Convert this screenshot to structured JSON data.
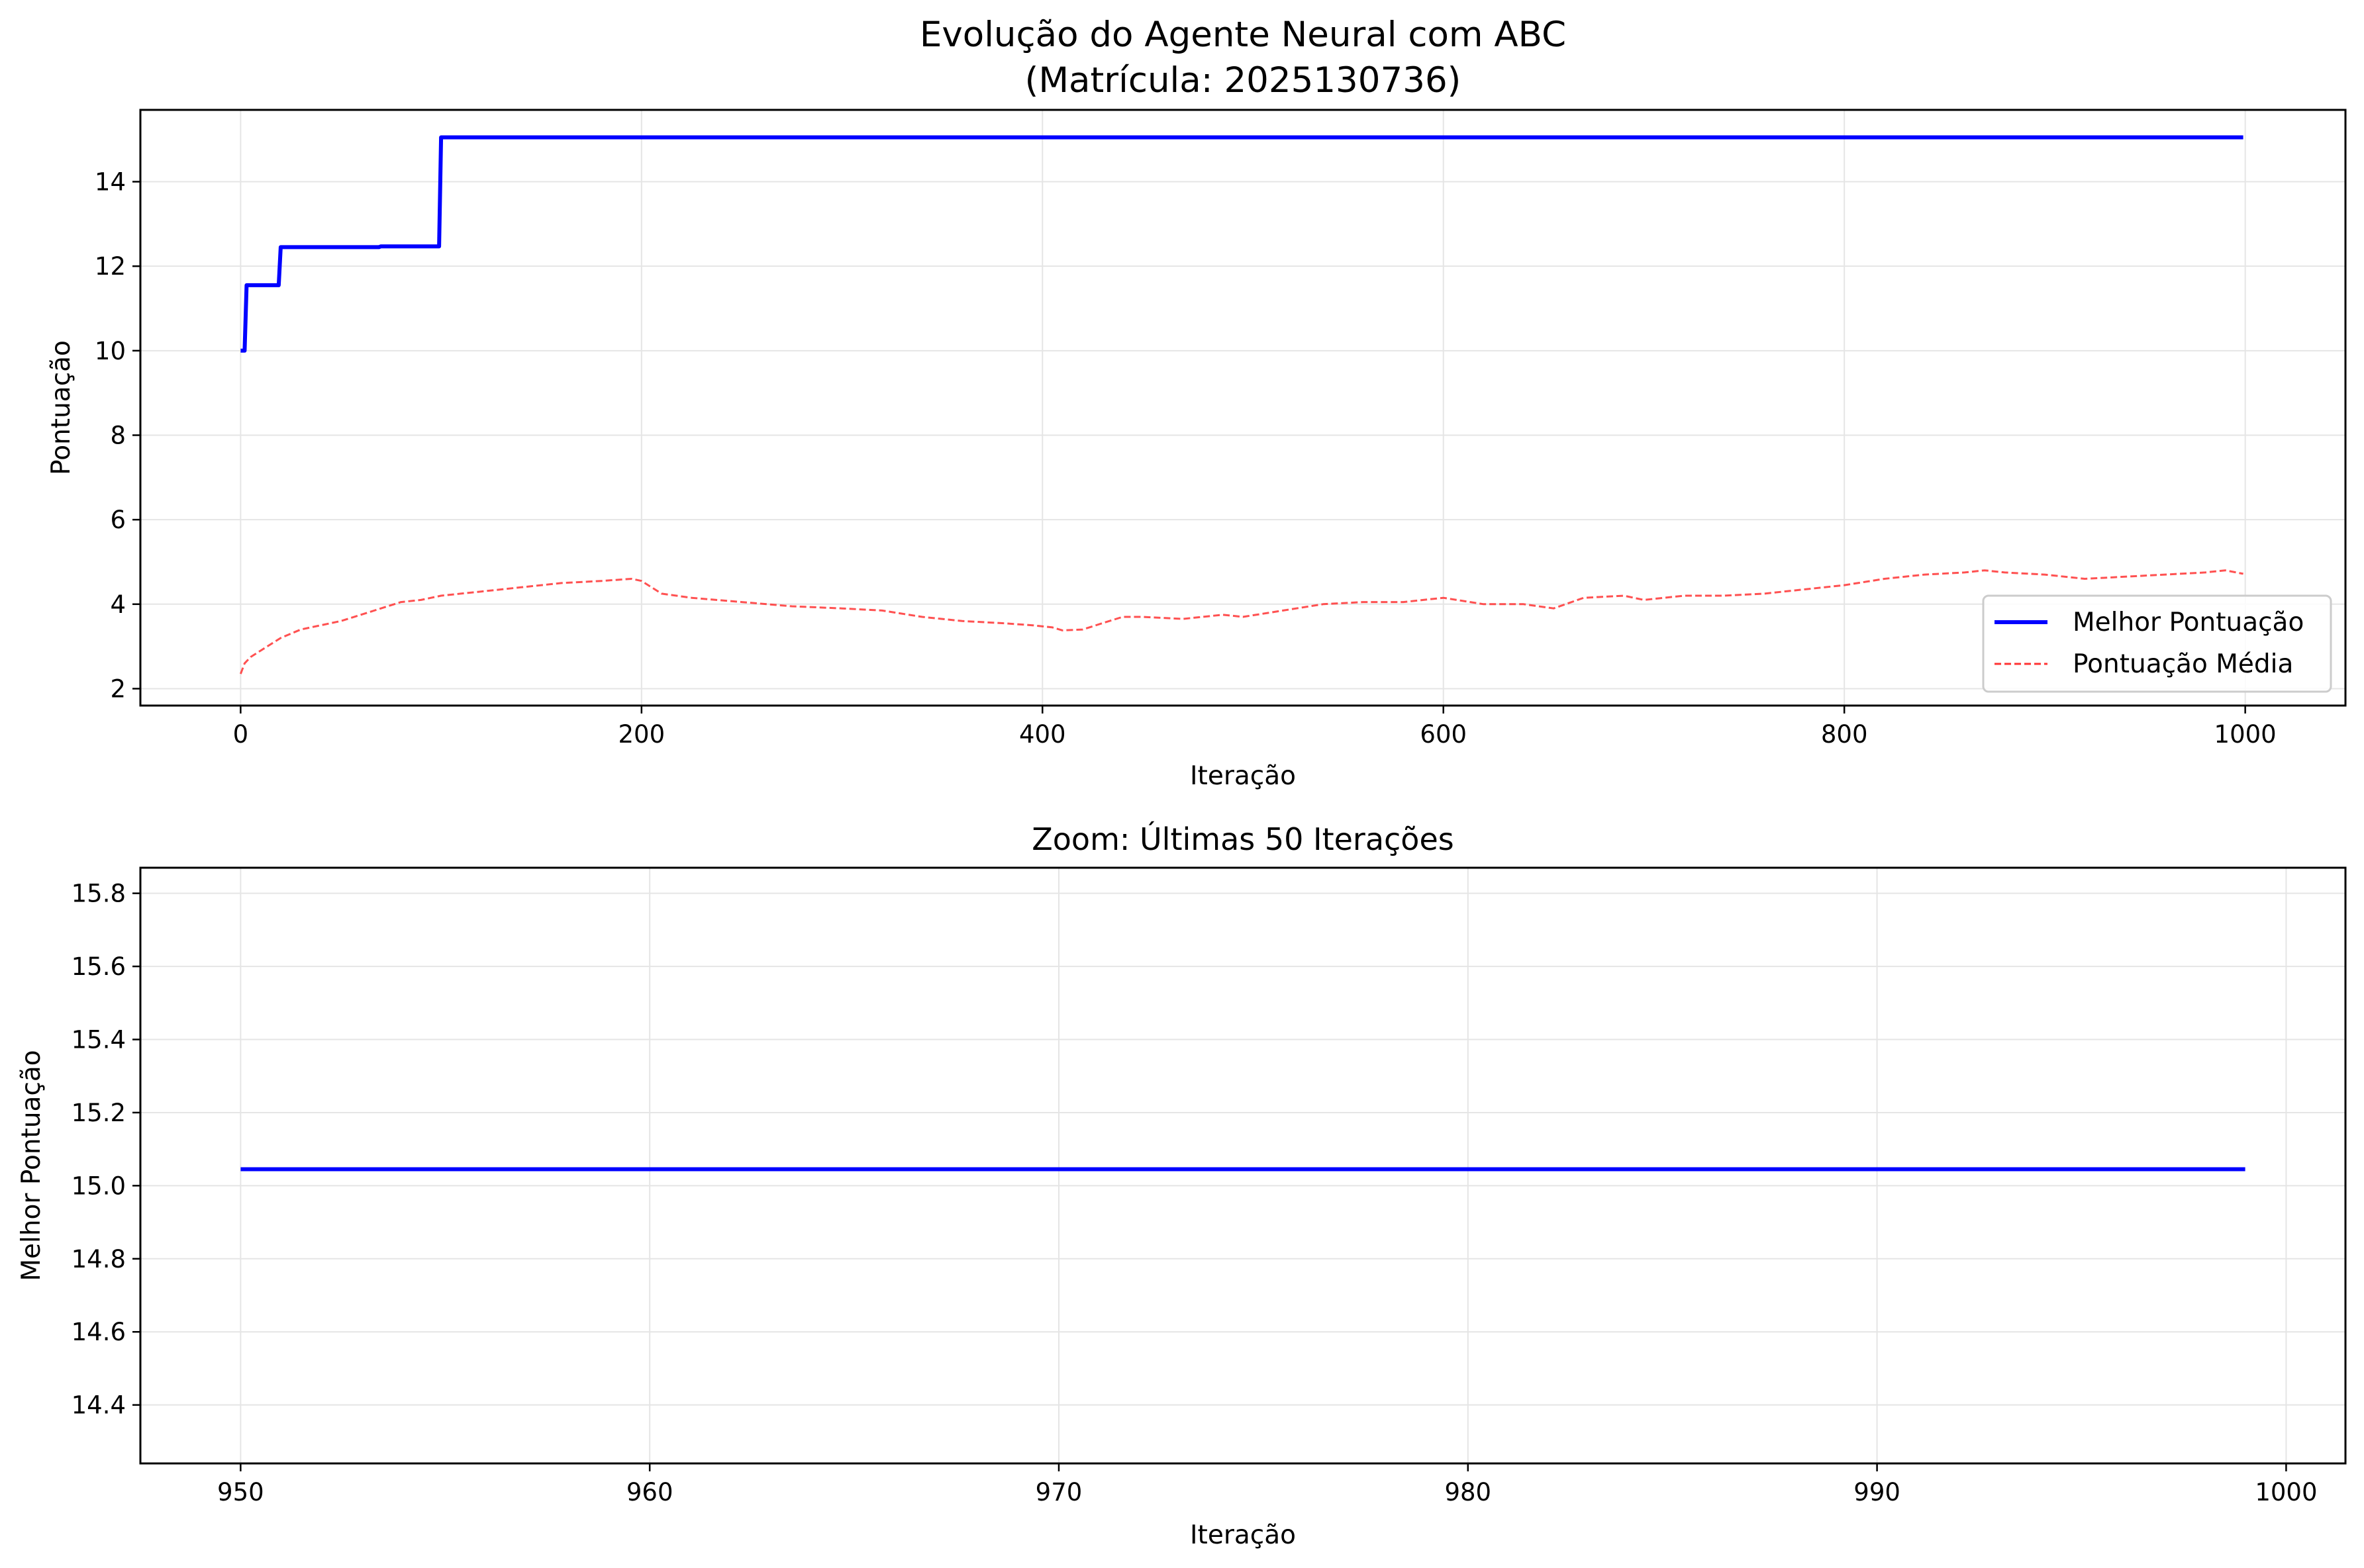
{
  "figure": {
    "title_line1": "Evolução do Agente Neural com ABC",
    "title_line2": "(Matrícula: 2025130736)"
  },
  "colors": {
    "best": "#0000ff",
    "mean": "#ff3333",
    "grid": "#e5e5e5",
    "axis": "#000000"
  },
  "chart_data": [
    {
      "type": "line",
      "title": "",
      "xlabel": "Iteração",
      "ylabel": "Pontuação",
      "xlim": [
        -50,
        1050
      ],
      "ylim": [
        1.6,
        15.7
      ],
      "xticks": [
        0,
        200,
        400,
        600,
        800,
        1000
      ],
      "yticks": [
        2,
        4,
        6,
        8,
        10,
        12,
        14
      ],
      "grid": true,
      "legend_position": "lower-right",
      "series": [
        {
          "name": "Melhor Pontuação",
          "style": "solid",
          "points": [
            [
              0,
              10.0
            ],
            [
              2,
              10.0
            ],
            [
              3,
              11.55
            ],
            [
              19,
              11.55
            ],
            [
              20,
              12.45
            ],
            [
              69,
              12.45
            ],
            [
              70,
              12.47
            ],
            [
              99,
              12.47
            ],
            [
              100,
              15.05
            ],
            [
              999,
              15.05
            ]
          ]
        },
        {
          "name": "Pontuação Média",
          "style": "dashed",
          "points": [
            [
              0,
              2.35
            ],
            [
              2,
              2.6
            ],
            [
              5,
              2.75
            ],
            [
              10,
              2.9
            ],
            [
              15,
              3.05
            ],
            [
              20,
              3.2
            ],
            [
              25,
              3.3
            ],
            [
              30,
              3.4
            ],
            [
              40,
              3.5
            ],
            [
              50,
              3.6
            ],
            [
              60,
              3.75
            ],
            [
              70,
              3.9
            ],
            [
              80,
              4.05
            ],
            [
              90,
              4.1
            ],
            [
              100,
              4.2
            ],
            [
              120,
              4.3
            ],
            [
              140,
              4.4
            ],
            [
              160,
              4.5
            ],
            [
              180,
              4.55
            ],
            [
              195,
              4.6
            ],
            [
              200,
              4.55
            ],
            [
              210,
              4.25
            ],
            [
              225,
              4.15
            ],
            [
              250,
              4.05
            ],
            [
              275,
              3.95
            ],
            [
              300,
              3.9
            ],
            [
              320,
              3.85
            ],
            [
              340,
              3.7
            ],
            [
              360,
              3.6
            ],
            [
              380,
              3.55
            ],
            [
              395,
              3.5
            ],
            [
              405,
              3.45
            ],
            [
              410,
              3.38
            ],
            [
              420,
              3.4
            ],
            [
              430,
              3.55
            ],
            [
              440,
              3.7
            ],
            [
              450,
              3.7
            ],
            [
              470,
              3.65
            ],
            [
              490,
              3.75
            ],
            [
              500,
              3.7
            ],
            [
              520,
              3.85
            ],
            [
              540,
              4.0
            ],
            [
              560,
              4.05
            ],
            [
              580,
              4.05
            ],
            [
              600,
              4.15
            ],
            [
              620,
              4.0
            ],
            [
              640,
              4.0
            ],
            [
              655,
              3.9
            ],
            [
              670,
              4.15
            ],
            [
              690,
              4.2
            ],
            [
              700,
              4.1
            ],
            [
              720,
              4.2
            ],
            [
              740,
              4.2
            ],
            [
              760,
              4.25
            ],
            [
              780,
              4.35
            ],
            [
              800,
              4.45
            ],
            [
              820,
              4.6
            ],
            [
              840,
              4.7
            ],
            [
              860,
              4.75
            ],
            [
              870,
              4.8
            ],
            [
              880,
              4.75
            ],
            [
              900,
              4.7
            ],
            [
              920,
              4.6
            ],
            [
              940,
              4.65
            ],
            [
              960,
              4.7
            ],
            [
              980,
              4.75
            ],
            [
              990,
              4.8
            ],
            [
              999,
              4.72
            ]
          ]
        }
      ]
    },
    {
      "type": "line",
      "title": "Zoom: Últimas 50 Iterações",
      "xlabel": "Iteração",
      "ylabel": "Melhor Pontuação",
      "xlim": [
        947.55,
        1001.45
      ],
      "ylim": [
        14.24,
        15.87
      ],
      "xticks": [
        950,
        960,
        970,
        980,
        990,
        1000
      ],
      "yticks": [
        14.4,
        14.6,
        14.8,
        15.0,
        15.2,
        15.4,
        15.6,
        15.8
      ],
      "ytick_decimals": 1,
      "grid": true,
      "series": [
        {
          "style": "solid",
          "points": [
            [
              950,
              15.045
            ],
            [
              999,
              15.045
            ]
          ]
        }
      ]
    }
  ]
}
